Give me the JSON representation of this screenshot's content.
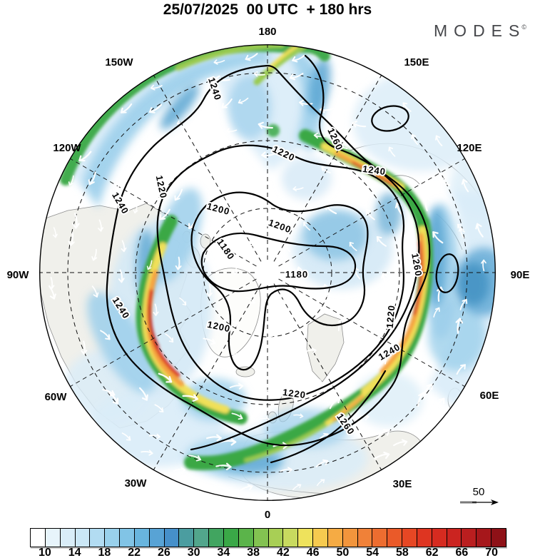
{
  "header": {
    "title": "25/07/2025  00 UTC  + 180 hrs",
    "logo": "MODES",
    "logo_sup": "©"
  },
  "map": {
    "projection": "north-polar-stereographic",
    "longitude_labels": [
      "180",
      "150W",
      "120W",
      "90W",
      "60W",
      "30W",
      "0",
      "30E",
      "60E",
      "90E",
      "120E",
      "150E"
    ],
    "contour_values": {
      "c1180": "1180",
      "c1200": "1200",
      "c1220": "1220",
      "c1240": "1240",
      "c1260": "1260"
    },
    "wind_scale_label": "50"
  },
  "colorbar": {
    "tick_labels": [
      "10",
      "14",
      "18",
      "22",
      "26",
      "30",
      "34",
      "38",
      "42",
      "46",
      "50",
      "54",
      "58",
      "62",
      "66",
      "70"
    ],
    "cell_colors": [
      "#ffffff",
      "#e7f4fb",
      "#d9edf8",
      "#cbe7f6",
      "#b2dcf2",
      "#99d1ec",
      "#81c4e6",
      "#68b5de",
      "#58a3d5",
      "#4690ca",
      "#4b9da0",
      "#52a68c",
      "#41a560",
      "#3aa847",
      "#5bb44a",
      "#83c251",
      "#a8cf55",
      "#c8da5f",
      "#eee25c",
      "#f6ca4f",
      "#f5ab44",
      "#f2953c",
      "#f08138",
      "#ed6d30",
      "#ea5a29",
      "#e64724",
      "#de3521",
      "#d62b20",
      "#cb2420",
      "#ba1e1f",
      "#a6171b",
      "#8e1117"
    ]
  }
}
